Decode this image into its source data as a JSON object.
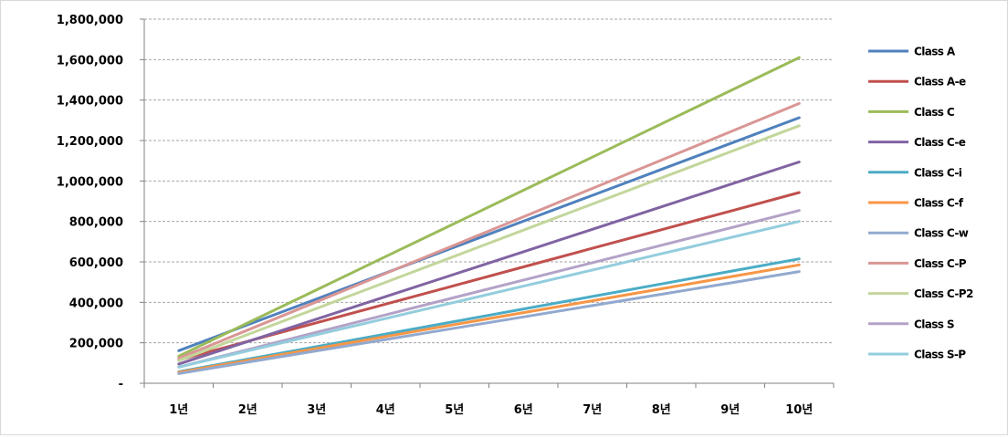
{
  "chart_data": {
    "type": "line",
    "title": "",
    "xlabel": "",
    "ylabel": "",
    "categories": [
      "1년",
      "2년",
      "3년",
      "4년",
      "5년",
      "6년",
      "7년",
      "8년",
      "9년",
      "10년"
    ],
    "ylim": [
      0,
      1800000
    ],
    "yticks": [
      0,
      200000,
      400000,
      600000,
      800000,
      1000000,
      1200000,
      1400000,
      1600000,
      1800000
    ],
    "ytick_labels": [
      "-",
      "200,000",
      "400,000",
      "600,000",
      "800,000",
      "1,000,000",
      "1,200,000",
      "1,400,000",
      "1,600,000",
      "1,800,000"
    ],
    "grid": "horizontal dashed",
    "legend_position": "right",
    "series": [
      {
        "name": "Class A",
        "color": "#4F81BD",
        "values": [
          161000,
          289000,
          417000,
          545000,
          673000,
          801000,
          929000,
          1057000,
          1185000,
          1313000
        ]
      },
      {
        "name": "Class A-e",
        "color": "#C0504D",
        "values": [
          115000,
          207000,
          299000,
          391000,
          483000,
          575000,
          667000,
          759000,
          851000,
          943000
        ]
      },
      {
        "name": "Class C",
        "color": "#9BBB59",
        "values": [
          134000,
          298000,
          462000,
          626000,
          790000,
          954000,
          1118000,
          1282000,
          1446000,
          1610000
        ]
      },
      {
        "name": "Class C-e",
        "color": "#8064A2",
        "values": [
          95000,
          206000,
          317000,
          428000,
          539000,
          650000,
          761000,
          872000,
          983000,
          1094000
        ]
      },
      {
        "name": "Class C-i",
        "color": "#4BACC6",
        "values": [
          57000,
          119000,
          181000,
          243000,
          305000,
          367000,
          429000,
          491000,
          553000,
          615000
        ]
      },
      {
        "name": "Class C-f",
        "color": "#F79646",
        "values": [
          54000,
          113000,
          172000,
          231000,
          290000,
          349000,
          408000,
          467000,
          526000,
          585000
        ]
      },
      {
        "name": "Class C-w",
        "color": "#92A9CF",
        "values": [
          48000,
          104000,
          160000,
          216000,
          272000,
          328000,
          384000,
          440000,
          496000,
          552000
        ]
      },
      {
        "name": "Class C-P",
        "color": "#D99694",
        "values": [
          123000,
          263000,
          403000,
          543000,
          683000,
          823000,
          963000,
          1103000,
          1243000,
          1383000
        ]
      },
      {
        "name": "Class C-P2",
        "color": "#C3D69B",
        "values": [
          112000,
          241000,
          370000,
          499000,
          628000,
          757000,
          886000,
          1015000,
          1144000,
          1273000
        ]
      },
      {
        "name": "Class S",
        "color": "#B3A2C7",
        "values": [
          80000,
          166000,
          252000,
          338000,
          424000,
          510000,
          596000,
          682000,
          768000,
          854000
        ]
      },
      {
        "name": "Class S-P",
        "color": "#93CDDD",
        "values": [
          80000,
          160000,
          240000,
          320000,
          400000,
          480000,
          560000,
          640000,
          720000,
          800000
        ]
      }
    ]
  }
}
